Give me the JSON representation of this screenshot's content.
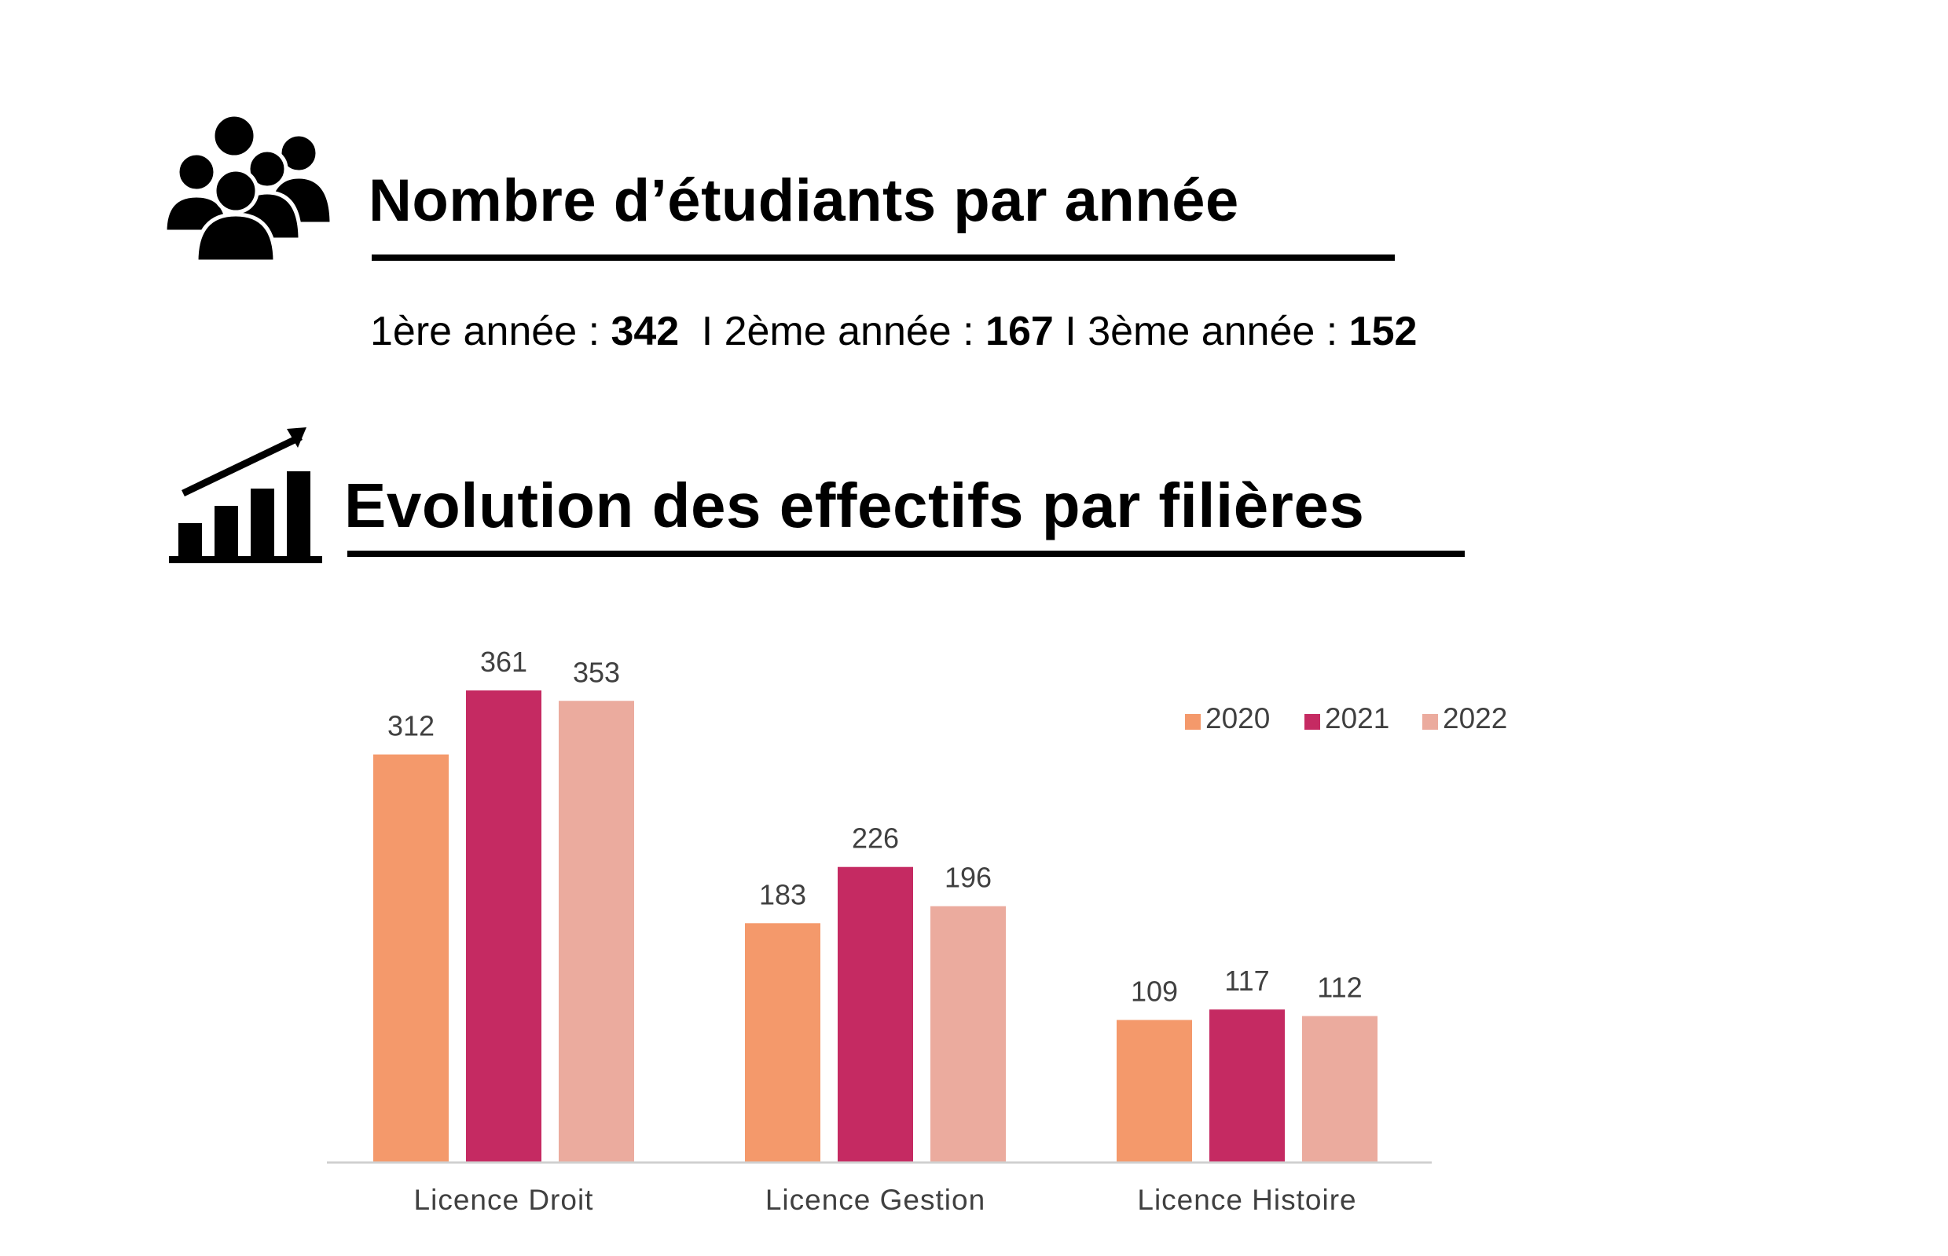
{
  "header_students": {
    "title": "Nombre d’étudiants par année",
    "icon": "people-group-icon",
    "stats": [
      {
        "label": "1ère année : ",
        "value": "342"
      },
      {
        "label": "2ème année : ",
        "value": "167"
      },
      {
        "label": "3ème année : ",
        "value": "152"
      }
    ],
    "separator": "I"
  },
  "header_evolution": {
    "title": "Evolution des effectifs par filières",
    "icon": "growth-chart-icon"
  },
  "chart_data": {
    "type": "bar",
    "categories": [
      "Licence Droit",
      "Licence Gestion",
      "Licence Histoire"
    ],
    "series": [
      {
        "name": "2020",
        "color": "#F4996B",
        "values": [
          312,
          183,
          109
        ]
      },
      {
        "name": "2021",
        "color": "#C52A62",
        "values": [
          361,
          226,
          117
        ]
      },
      {
        "name": "2022",
        "color": "#EBAB9E",
        "values": [
          353,
          196,
          112
        ]
      }
    ],
    "ylim": [
      0,
      400
    ],
    "grid": false,
    "legend_position": "top-right",
    "data_labels": true
  }
}
